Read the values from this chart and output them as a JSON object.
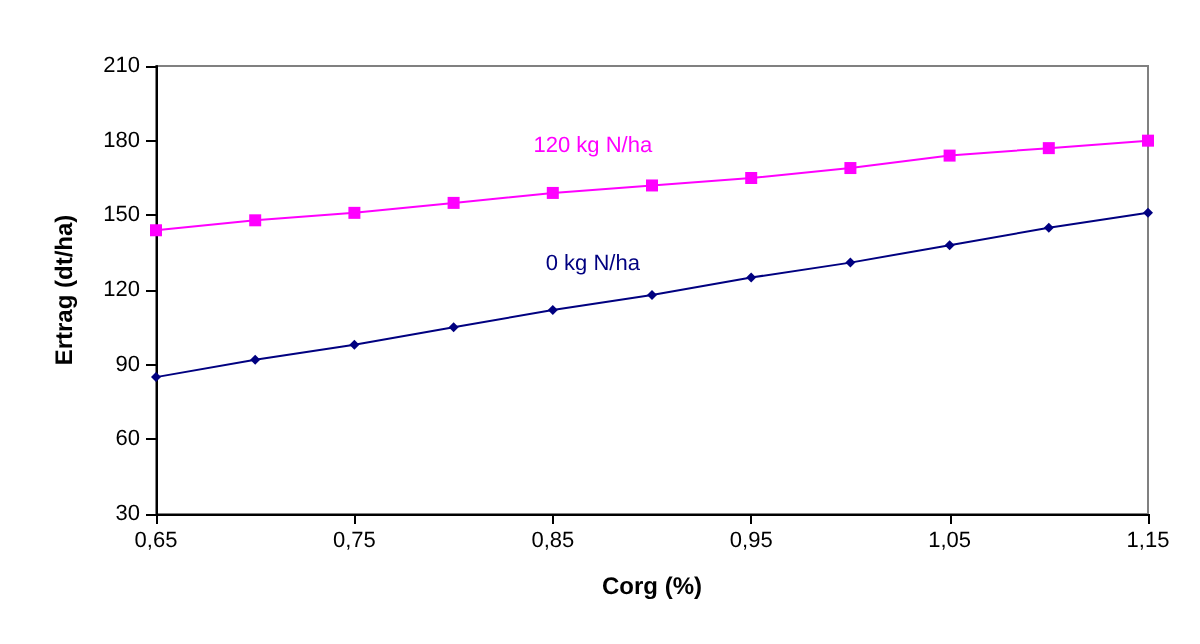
{
  "chart_data": {
    "type": "line",
    "xlabel": "Corg (%)",
    "ylabel": "Ertrag (dt/ha)",
    "x": [
      0.65,
      0.7,
      0.75,
      0.8,
      0.85,
      0.9,
      0.95,
      1.0,
      1.05,
      1.1,
      1.15
    ],
    "series": [
      {
        "name": "120 kg N/ha",
        "color": "#ff00ff",
        "marker": "square",
        "values": [
          144,
          148,
          151,
          155,
          159,
          162,
          165,
          169,
          174,
          177,
          180
        ]
      },
      {
        "name": "0 kg N/ha",
        "color": "#000080",
        "marker": "diamond",
        "values": [
          85,
          92,
          98,
          105,
          112,
          118,
          125,
          131,
          138,
          145,
          151
        ]
      }
    ],
    "xlim": [
      0.65,
      1.15
    ],
    "xticks": [
      {
        "value": 0.65,
        "label": "0,65"
      },
      {
        "value": 0.75,
        "label": "0,75"
      },
      {
        "value": 0.85,
        "label": "0,85"
      },
      {
        "value": 0.95,
        "label": "0,95"
      },
      {
        "value": 1.05,
        "label": "1,05"
      },
      {
        "value": 1.15,
        "label": "1,15"
      }
    ],
    "ylim": [
      30,
      210
    ],
    "yticks": [
      30,
      60,
      90,
      120,
      150,
      180,
      210
    ],
    "grid": false,
    "legend": false
  }
}
